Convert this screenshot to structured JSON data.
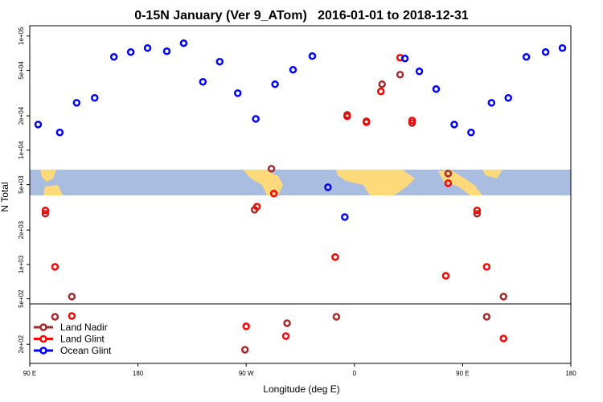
{
  "chart_data": {
    "type": "scatter",
    "title": "0-15N January (Ver 9_ATom)   2016-01-01 to 2018-12-31",
    "xlabel": "Longitude (deg E)",
    "ylabel": "N Total",
    "xlim": [
      90,
      540
    ],
    "ylim": [
      136,
      123000
    ],
    "log_y": true,
    "legend": "bottom-left",
    "xticks": [
      {
        "value": 90,
        "label": "90 E"
      },
      {
        "value": 180,
        "label": "180"
      },
      {
        "value": 270,
        "label": "90 W"
      },
      {
        "value": 360,
        "label": "0"
      },
      {
        "value": 450,
        "label": "90 E"
      },
      {
        "value": 540,
        "label": "180"
      }
    ],
    "yticks": [
      {
        "value": 200,
        "label": "2e+02"
      },
      {
        "value": 500,
        "label": "5e+02"
      },
      {
        "value": 1000,
        "label": "1e+03"
      },
      {
        "value": 2000,
        "label": "2e+03"
      },
      {
        "value": 5000,
        "label": "5e+03"
      },
      {
        "value": 10000,
        "label": "1e+04"
      },
      {
        "value": 20000,
        "label": "2e+04"
      },
      {
        "value": 50000,
        "label": "5e+04"
      },
      {
        "value": 100000,
        "label": "1e+05"
      }
    ],
    "series": [
      {
        "name": "Land Nadir",
        "color": "#a52a2a",
        "x": [
          103,
          111,
          125,
          269,
          277,
          291,
          304,
          345,
          354,
          370,
          383,
          398,
          408,
          438,
          462,
          470,
          484
        ],
        "values": [
          2780,
          348,
          523,
          179,
          3010,
          6890,
          306,
          348,
          20400,
          17900,
          37800,
          45900,
          17300,
          6250,
          2780,
          348,
          523
        ]
      },
      {
        "name": "Land Glint",
        "color": "#ff0000",
        "x": [
          103,
          111,
          125,
          270,
          279,
          293,
          303,
          344,
          354,
          370,
          382,
          398,
          408,
          436,
          438,
          462,
          470,
          484
        ],
        "values": [
          2970,
          953,
          354,
          287,
          3210,
          4170,
          236,
          1160,
          19800,
          17600,
          32700,
          64600,
          18200,
          796,
          5140,
          2970,
          953,
          225
        ]
      },
      {
        "name": "Ocean Glint",
        "color": "#0000ff",
        "x": [
          97,
          115,
          129,
          144,
          160,
          174,
          188,
          204,
          218,
          234,
          248,
          263,
          278,
          294,
          309,
          325,
          338,
          352,
          402,
          414,
          428,
          443,
          457,
          474,
          488,
          503,
          519,
          533
        ],
        "values": [
          16800,
          14300,
          26000,
          28700,
          65600,
          72300,
          78400,
          73500,
          86500,
          39700,
          59600,
          31600,
          18800,
          37800,
          50600,
          66700,
          4740,
          2600,
          63500,
          49000,
          34300,
          16800,
          14300,
          26000,
          28700,
          65600,
          72300,
          78400
        ]
      }
    ]
  }
}
